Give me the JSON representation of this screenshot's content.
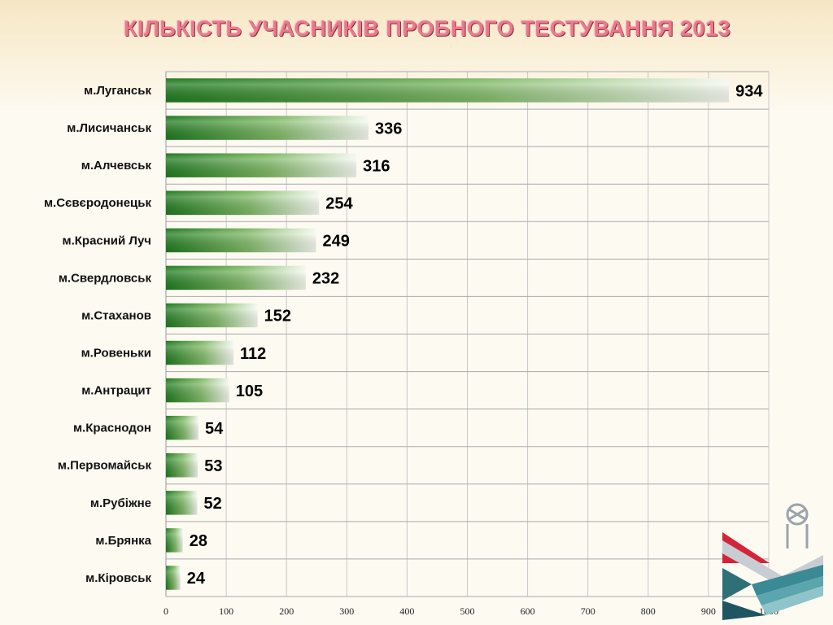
{
  "title": "КІЛЬКІСТЬ УЧАСНИКІВ ПРОБНОГО ТЕСТУВАННЯ 2013",
  "chart_data": {
    "type": "bar",
    "orientation": "horizontal",
    "title": "КІЛЬКІСТЬ УЧАСНИКІВ ПРОБНОГО ТЕСТУВАННЯ 2013",
    "categories": [
      "м.Луганськ",
      "м.Лисичанськ",
      "м.Алчевськ",
      "м.Сєвєродонецьк",
      "м.Красний Луч",
      "м.Свердловськ",
      "м.Стаханов",
      "м.Ровеньки",
      "м.Антрацит",
      "м.Краснодон",
      "м.Первомайськ",
      "м.Рубіжне",
      "м.Брянка",
      "м.Кіровськ"
    ],
    "values": [
      934,
      336,
      316,
      254,
      249,
      232,
      152,
      112,
      105,
      54,
      53,
      52,
      28,
      24
    ],
    "xlim": [
      0,
      1000
    ],
    "xticks": [
      0,
      100,
      200,
      300,
      400,
      500,
      600,
      700,
      800,
      900,
      1000
    ],
    "grid": true,
    "legend": "none",
    "colors": {
      "bar_dark": "#1f7a1f",
      "bar_light": "#ffffff",
      "grid": "#b5b5b5",
      "label": "#000000"
    }
  },
  "logo": {
    "icon": "education-center-logo"
  }
}
